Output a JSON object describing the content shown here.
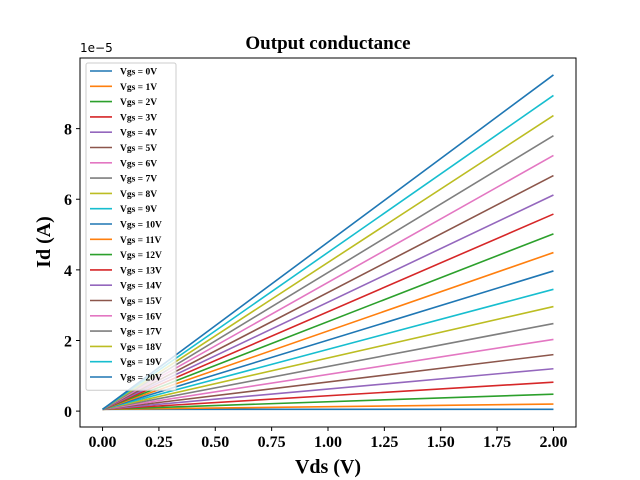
{
  "chart_data": {
    "type": "line",
    "title": "Output conductance",
    "xlabel": "Vds (V)",
    "ylabel": "Id (A)",
    "offset_text": "1e−5",
    "xlim": [
      -0.1,
      2.1
    ],
    "ylim": [
      -0.45,
      10.0
    ],
    "y_display_scale": 1e-05,
    "xticks": [
      0.0,
      0.25,
      0.5,
      0.75,
      1.0,
      1.25,
      1.5,
      1.75,
      2.0
    ],
    "xtick_labels": [
      "0.00",
      "0.25",
      "0.50",
      "0.75",
      "1.00",
      "1.25",
      "1.50",
      "1.75",
      "2.00"
    ],
    "yticks": [
      0,
      2,
      4,
      6,
      8
    ],
    "ytick_labels": [
      "0",
      "2",
      "4",
      "6",
      "8"
    ],
    "grid": false,
    "legend_position": "upper-left",
    "x": [
      0.0,
      2.0
    ],
    "series": [
      {
        "name": "Vgs = 0V",
        "color": "#1f77b4",
        "values": [
          0.05,
          0.05
        ]
      },
      {
        "name": "Vgs = 1V",
        "color": "#ff7f0e",
        "values": [
          0.05,
          0.2
        ]
      },
      {
        "name": "Vgs = 2V",
        "color": "#2ca02c",
        "values": [
          0.05,
          0.48
        ]
      },
      {
        "name": "Vgs = 3V",
        "color": "#d62728",
        "values": [
          0.05,
          0.82
        ]
      },
      {
        "name": "Vgs = 4V",
        "color": "#9467bd",
        "values": [
          0.05,
          1.2
        ]
      },
      {
        "name": "Vgs = 5V",
        "color": "#8c564b",
        "values": [
          0.05,
          1.6
        ]
      },
      {
        "name": "Vgs = 6V",
        "color": "#e377c2",
        "values": [
          0.05,
          2.03
        ]
      },
      {
        "name": "Vgs = 7V",
        "color": "#7f7f7f",
        "values": [
          0.05,
          2.48
        ]
      },
      {
        "name": "Vgs = 8V",
        "color": "#bcbd22",
        "values": [
          0.05,
          2.96
        ]
      },
      {
        "name": "Vgs = 9V",
        "color": "#17becf",
        "values": [
          0.05,
          3.45
        ]
      },
      {
        "name": "Vgs = 10V",
        "color": "#1f77b4",
        "values": [
          0.05,
          3.97
        ]
      },
      {
        "name": "Vgs = 11V",
        "color": "#ff7f0e",
        "values": [
          0.05,
          4.49
        ]
      },
      {
        "name": "Vgs = 12V",
        "color": "#2ca02c",
        "values": [
          0.05,
          5.02
        ]
      },
      {
        "name": "Vgs = 13V",
        "color": "#d62728",
        "values": [
          0.05,
          5.58
        ]
      },
      {
        "name": "Vgs = 14V",
        "color": "#9467bd",
        "values": [
          0.05,
          6.12
        ]
      },
      {
        "name": "Vgs = 15V",
        "color": "#8c564b",
        "values": [
          0.05,
          6.67
        ]
      },
      {
        "name": "Vgs = 16V",
        "color": "#e377c2",
        "values": [
          0.05,
          7.24
        ]
      },
      {
        "name": "Vgs = 17V",
        "color": "#7f7f7f",
        "values": [
          0.05,
          7.8
        ]
      },
      {
        "name": "Vgs = 18V",
        "color": "#bcbd22",
        "values": [
          0.05,
          8.37
        ]
      },
      {
        "name": "Vgs = 19V",
        "color": "#17becf",
        "values": [
          0.05,
          8.94
        ]
      },
      {
        "name": "Vgs = 20V",
        "color": "#1f77b4",
        "values": [
          0.05,
          9.52
        ]
      }
    ]
  }
}
